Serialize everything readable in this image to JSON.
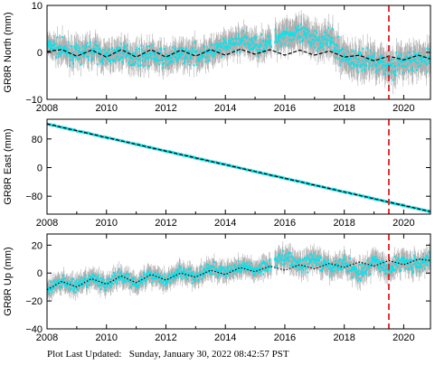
{
  "footer": {
    "prefix": "Plot Last Updated:",
    "timestamp": "Sunday, January 30, 2022 08:42:57 PST"
  },
  "colors": {
    "points": "#00e5ee",
    "errorbars": "#b0b0b0",
    "model": "#000000",
    "event_line": "#e02020"
  },
  "chart_data": [
    {
      "type": "scatter",
      "ylabel": "GR8R North (mm)",
      "xlim": [
        2008,
        2020.9
      ],
      "ylim": [
        -10,
        10
      ],
      "xticks": [
        2008,
        2010,
        2012,
        2014,
        2016,
        2018,
        2020
      ],
      "xtick_labels": [
        "2008",
        "2010",
        "2012",
        "2014",
        "2016",
        "2018",
        "2020"
      ],
      "yticks": [
        -10,
        0,
        10
      ],
      "ytick_labels": [
        "−10",
        "0",
        "10"
      ],
      "event_line_x": 2019.5,
      "series": [
        {
          "role": "observations",
          "x": [
            2008.0,
            2008.5,
            2009.0,
            2009.5,
            2010.0,
            2010.5,
            2011.0,
            2011.5,
            2012.0,
            2012.5,
            2013.0,
            2013.5,
            2014.0,
            2014.5,
            2015.0,
            2015.5,
            2016.0,
            2016.5,
            2017.0,
            2017.5,
            2018.0,
            2018.5,
            2019.0,
            2019.5,
            2020.0,
            2020.5,
            2020.9
          ],
          "y": [
            1.5,
            0.5,
            -0.5,
            0.5,
            -1.0,
            0.0,
            -1.0,
            -0.5,
            -1.5,
            -0.5,
            -0.5,
            0.0,
            1.0,
            2.5,
            1.5,
            2.0,
            4.0,
            3.5,
            3.0,
            2.5,
            -1.0,
            -2.0,
            -1.5,
            -3.0,
            -2.0,
            -2.0,
            -1.0
          ],
          "error": [
            2.0,
            2.5,
            2.5,
            2.5,
            2.5,
            2.5,
            2.5,
            2.5,
            2.5,
            2.5,
            2.5,
            2.5,
            2.5,
            2.5,
            2.5,
            2.5,
            3.0,
            3.0,
            3.0,
            3.0,
            3.0,
            3.0,
            3.0,
            3.0,
            3.0,
            3.0,
            3.0
          ]
        },
        {
          "role": "model",
          "x": [
            2008.0,
            2008.5,
            2009.0,
            2009.5,
            2010.0,
            2010.5,
            2011.0,
            2011.5,
            2012.0,
            2012.5,
            2013.0,
            2013.5,
            2014.0,
            2014.5,
            2015.0,
            2015.5,
            2016.0,
            2016.5,
            2017.0,
            2017.5,
            2018.0,
            2018.5,
            2019.0,
            2019.5,
            2020.0,
            2020.5,
            2020.9
          ],
          "y": [
            0.2,
            0.6,
            -0.8,
            0.5,
            -1.0,
            0.6,
            -1.0,
            0.6,
            -1.0,
            0.5,
            -0.8,
            0.6,
            -0.6,
            0.7,
            -0.4,
            0.6,
            -0.6,
            0.5,
            -0.6,
            0.3,
            -1.0,
            -0.6,
            -1.8,
            -0.8,
            -1.6,
            -0.6,
            -1.4
          ]
        }
      ]
    },
    {
      "type": "scatter",
      "ylabel": "GR8R East (mm)",
      "xlim": [
        2008,
        2020.9
      ],
      "ylim": [
        -130,
        135
      ],
      "xticks": [
        2008,
        2010,
        2012,
        2014,
        2016,
        2018,
        2020
      ],
      "xtick_labels": [
        "2008",
        "2010",
        "2012",
        "2014",
        "2016",
        "2018",
        "2020"
      ],
      "yticks": [
        -80,
        0,
        80
      ],
      "ytick_labels": [
        "−80",
        "0",
        "80"
      ],
      "event_line_x": 2019.5,
      "series": [
        {
          "role": "observations",
          "x": [
            2008.0,
            2009.0,
            2010.0,
            2011.0,
            2012.0,
            2013.0,
            2014.0,
            2015.0,
            2016.0,
            2017.0,
            2018.0,
            2019.0,
            2020.0,
            2020.9
          ],
          "y": [
            122,
            103,
            84,
            65,
            46,
            27,
            8,
            -11,
            -30,
            -49,
            -68,
            -87,
            -106,
            -123
          ],
          "error": [
            4,
            4,
            4,
            4,
            4,
            4,
            4,
            4,
            4,
            4,
            4,
            4,
            4,
            4
          ]
        },
        {
          "role": "model",
          "x": [
            2008.0,
            2020.9
          ],
          "y": [
            122,
            -123
          ]
        }
      ]
    },
    {
      "type": "scatter",
      "ylabel": "GR8R Up (mm)",
      "xlim": [
        2008,
        2020.9
      ],
      "ylim": [
        -40,
        28
      ],
      "xticks": [
        2008,
        2010,
        2012,
        2014,
        2016,
        2018,
        2020
      ],
      "xtick_labels": [
        "2008",
        "2010",
        "2012",
        "2014",
        "2016",
        "2018",
        "2020"
      ],
      "yticks": [
        -40,
        -20,
        0,
        20
      ],
      "ytick_labels": [
        "−40",
        "−20",
        "0",
        "20"
      ],
      "event_line_x": 2019.5,
      "series": [
        {
          "role": "observations",
          "x": [
            2008.0,
            2008.5,
            2009.0,
            2009.5,
            2010.0,
            2010.5,
            2011.0,
            2011.5,
            2012.0,
            2012.5,
            2013.0,
            2013.5,
            2014.0,
            2014.5,
            2015.0,
            2015.5,
            2016.0,
            2016.5,
            2017.0,
            2017.5,
            2018.0,
            2018.5,
            2019.0,
            2019.5,
            2020.0,
            2020.5,
            2020.9
          ],
          "y": [
            -12,
            -6,
            -10,
            -4,
            -8,
            -2,
            -7,
            -1,
            -5,
            1,
            -3,
            3,
            0,
            5,
            2,
            6,
            12,
            5,
            10,
            3,
            7,
            0,
            8,
            3,
            9,
            5,
            10
          ],
          "error": [
            6,
            6,
            6,
            6,
            6,
            6,
            6,
            6,
            6,
            6,
            6,
            6,
            6,
            6,
            6,
            6,
            7,
            7,
            7,
            7,
            7,
            7,
            7,
            7,
            7,
            7,
            7
          ]
        },
        {
          "role": "model",
          "x": [
            2008.0,
            2008.5,
            2009.0,
            2009.5,
            2010.0,
            2010.5,
            2011.0,
            2011.5,
            2012.0,
            2012.5,
            2013.0,
            2013.5,
            2014.0,
            2014.5,
            2015.0,
            2015.5,
            2016.0,
            2016.5,
            2017.0,
            2017.5,
            2018.0,
            2018.5,
            2019.0,
            2019.5,
            2020.0,
            2020.5,
            2020.9
          ],
          "y": [
            -12,
            -6,
            -10,
            -4,
            -8,
            -2,
            -7,
            -1,
            -5,
            0,
            -3,
            2,
            -1,
            4,
            1,
            5,
            2,
            6,
            3,
            7,
            4,
            8,
            5,
            9,
            6,
            10,
            9
          ]
        }
      ]
    }
  ]
}
